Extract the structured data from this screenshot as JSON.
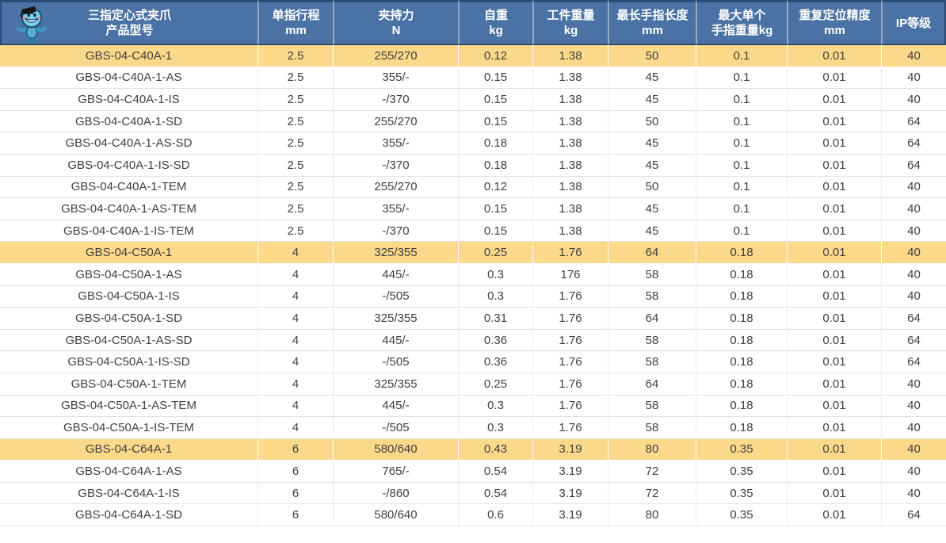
{
  "colors": {
    "header_bg": "#4A72A4",
    "header_text": "#FFFFFF",
    "header_outer_border": "#2B4C77",
    "header_divider": "#93A9C6",
    "highlight_row_bg": "#FBD98B",
    "row_bg": "#FFFFFF",
    "row_divider": "#E2E2E2",
    "body_text": "#404040"
  },
  "icons": {
    "mascot": "robot-mascot-with-graduation-cap"
  },
  "table": {
    "columns": [
      {
        "key": "model",
        "line1": "三指定心式夹爪",
        "line2": "产品型号"
      },
      {
        "key": "stroke",
        "line1": "单指行程",
        "line2": "mm"
      },
      {
        "key": "force",
        "line1": "夹持力",
        "line2": "N"
      },
      {
        "key": "self_weight",
        "line1": "自重",
        "line2": "kg"
      },
      {
        "key": "workpiece",
        "line1": "工件重量",
        "line2": "kg"
      },
      {
        "key": "finger_length",
        "line1": "最长手指长度",
        "line2": "mm"
      },
      {
        "key": "finger_weight",
        "line1": "最大单个",
        "line2": "手指重量kg"
      },
      {
        "key": "repeatability",
        "line1": "重复定位精度",
        "line2": "mm"
      },
      {
        "key": "ip",
        "line1": "IP等级",
        "line2": ""
      }
    ],
    "rows": [
      {
        "model": "GBS-04-C40A-1",
        "highlight": true,
        "values": [
          "2.5",
          "255/270",
          "0.12",
          "1.38",
          "50",
          "0.1",
          "0.01",
          "40"
        ]
      },
      {
        "model": "GBS-04-C40A-1-AS",
        "highlight": false,
        "values": [
          "2.5",
          "355/-",
          "0.15",
          "1.38",
          "45",
          "0.1",
          "0.01",
          "40"
        ]
      },
      {
        "model": "GBS-04-C40A-1-IS",
        "highlight": false,
        "values": [
          "2.5",
          "-/370",
          "0.15",
          "1.38",
          "45",
          "0.1",
          "0.01",
          "40"
        ]
      },
      {
        "model": "GBS-04-C40A-1-SD",
        "highlight": false,
        "values": [
          "2.5",
          "255/270",
          "0.15",
          "1.38",
          "50",
          "0.1",
          "0.01",
          "64"
        ]
      },
      {
        "model": "GBS-04-C40A-1-AS-SD",
        "highlight": false,
        "values": [
          "2.5",
          "355/-",
          "0.18",
          "1.38",
          "45",
          "0.1",
          "0.01",
          "64"
        ]
      },
      {
        "model": "GBS-04-C40A-1-IS-SD",
        "highlight": false,
        "values": [
          "2.5",
          "-/370",
          "0.18",
          "1.38",
          "45",
          "0.1",
          "0.01",
          "64"
        ]
      },
      {
        "model": "GBS-04-C40A-1-TEM",
        "highlight": false,
        "values": [
          "2.5",
          "255/270",
          "0.12",
          "1.38",
          "50",
          "0.1",
          "0.01",
          "40"
        ]
      },
      {
        "model": "GBS-04-C40A-1-AS-TEM",
        "highlight": false,
        "values": [
          "2.5",
          "355/-",
          "0.15",
          "1.38",
          "45",
          "0.1",
          "0.01",
          "40"
        ]
      },
      {
        "model": "GBS-04-C40A-1-IS-TEM",
        "highlight": false,
        "values": [
          "2.5",
          "-/370",
          "0.15",
          "1.38",
          "45",
          "0.1",
          "0.01",
          "40"
        ]
      },
      {
        "model": "GBS-04-C50A-1",
        "highlight": true,
        "values": [
          "4",
          "325/355",
          "0.25",
          "1.76",
          "64",
          "0.18",
          "0.01",
          "40"
        ]
      },
      {
        "model": "GBS-04-C50A-1-AS",
        "highlight": false,
        "values": [
          "4",
          "445/-",
          "0.3",
          "176",
          "58",
          "0.18",
          "0.01",
          "40"
        ]
      },
      {
        "model": "GBS-04-C50A-1-IS",
        "highlight": false,
        "values": [
          "4",
          "-/505",
          "0.3",
          "1.76",
          "58",
          "0.18",
          "0.01",
          "40"
        ]
      },
      {
        "model": "GBS-04-C50A-1-SD",
        "highlight": false,
        "values": [
          "4",
          "325/355",
          "0.31",
          "1.76",
          "64",
          "0.18",
          "0.01",
          "64"
        ]
      },
      {
        "model": "GBS-04-C50A-1-AS-SD",
        "highlight": false,
        "values": [
          "4",
          "445/-",
          "0.36",
          "1.76",
          "58",
          "0.18",
          "0.01",
          "64"
        ]
      },
      {
        "model": "GBS-04-C50A-1-IS-SD",
        "highlight": false,
        "values": [
          "4",
          "-/505",
          "0.36",
          "1.76",
          "58",
          "0.18",
          "0.01",
          "64"
        ]
      },
      {
        "model": "GBS-04-C50A-1-TEM",
        "highlight": false,
        "values": [
          "4",
          "325/355",
          "0.25",
          "1.76",
          "64",
          "0.18",
          "0.01",
          "40"
        ]
      },
      {
        "model": "GBS-04-C50A-1-AS-TEM",
        "highlight": false,
        "values": [
          "4",
          "445/-",
          "0.3",
          "1.76",
          "58",
          "0.18",
          "0.01",
          "40"
        ]
      },
      {
        "model": "GBS-04-C50A-1-IS-TEM",
        "highlight": false,
        "values": [
          "4",
          "-/505",
          "0.3",
          "1.76",
          "58",
          "0.18",
          "0.01",
          "40"
        ]
      },
      {
        "model": "GBS-04-C64A-1",
        "highlight": true,
        "values": [
          "6",
          "580/640",
          "0.43",
          "3.19",
          "80",
          "0.35",
          "0.01",
          "40"
        ]
      },
      {
        "model": "GBS-04-C64A-1-AS",
        "highlight": false,
        "values": [
          "6",
          "765/-",
          "0.54",
          "3.19",
          "72",
          "0.35",
          "0.01",
          "40"
        ]
      },
      {
        "model": "GBS-04-C64A-1-IS",
        "highlight": false,
        "values": [
          "6",
          "-/860",
          "0.54",
          "3.19",
          "72",
          "0.35",
          "0.01",
          "40"
        ]
      },
      {
        "model": "GBS-04-C64A-1-SD",
        "highlight": false,
        "values": [
          "6",
          "580/640",
          "0.6",
          "3.19",
          "80",
          "0.35",
          "0.01",
          "64"
        ]
      }
    ]
  }
}
